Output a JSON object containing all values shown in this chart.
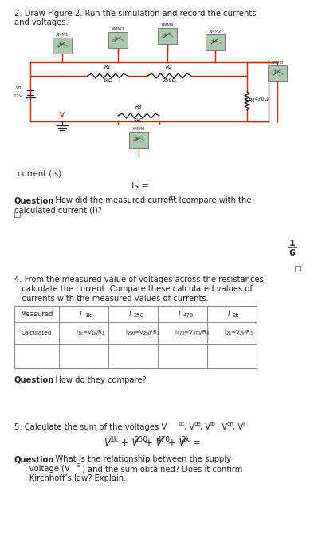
{
  "bg_color": "#f5f5f5",
  "text_color": "#222222",
  "wire_color": "#cc2200",
  "ammeter_face": "#adc9ad",
  "ammeter_edge": "#777777",
  "resistor_color": "#222222",
  "title1": "2. Draw Figure 2. Run the simulation and record the currents",
  "title2": "and voltages.",
  "circuit_note": "current (Is).",
  "is_eq": "Is =",
  "q2a": "Question",
  "q2b": ": How did the measured current I",
  "q2c": "ab",
  "q2d": " compare with the",
  "q2e": "calculated current (I)?",
  "page1": "1",
  "page2": "6",
  "s4l1": "4. From the measured value of voltages across the resistances,",
  "s4l2": "   calculate the current. Compare these calculated values of",
  "s4l3": "   currents with the measured values of currents.",
  "tbl_measured": "Measured",
  "tbl_i1k": "I",
  "tbl_i1k_sub": "1k",
  "tbl_i250": "I",
  "tbl_i250_sub": "250",
  "tbl_i470": "I",
  "tbl_i470_sub": "470",
  "tbl_i2k": "I",
  "tbl_i2k_sub": "2k",
  "tbl_calc": "Calculated",
  "tbl_c1": "I",
  "tbl_c1s": "1k",
  "tbl_eq": "=V",
  "tbl_c1v": "1k",
  "tbl_r1": "/R",
  "tbl_r1n": "1",
  "q4a": "Question",
  "q4b": ": How do they compare?",
  "s5": "5. Calculate the sum of the voltages V",
  "s5_bc": "bc",
  "s5_comma1": ", V",
  "s5_de": "de",
  "s5_comma2": ", V",
  "s5_fg": "fg",
  "s5_comma3": ", V",
  "s5_gh": "gh",
  "s5_comma4": ", V",
  "s5_ij": "ij",
  "formula": "V",
  "f1k": "1k",
  "f_plus1": " + V",
  "f250": "250",
  "f_plus2": "+ V",
  "f470": "470",
  "f_plus3": "+ V",
  "f2k": "2k",
  "f_eq": " =",
  "q5a": "Question",
  "q5b": ": What is the relationship between the supply",
  "q5c": "      voltage (V",
  "q5cs": "S",
  "q5d": ") and the sum obtained? Does it confirm",
  "q5e": "      Kirchhoff’s law? Explain."
}
